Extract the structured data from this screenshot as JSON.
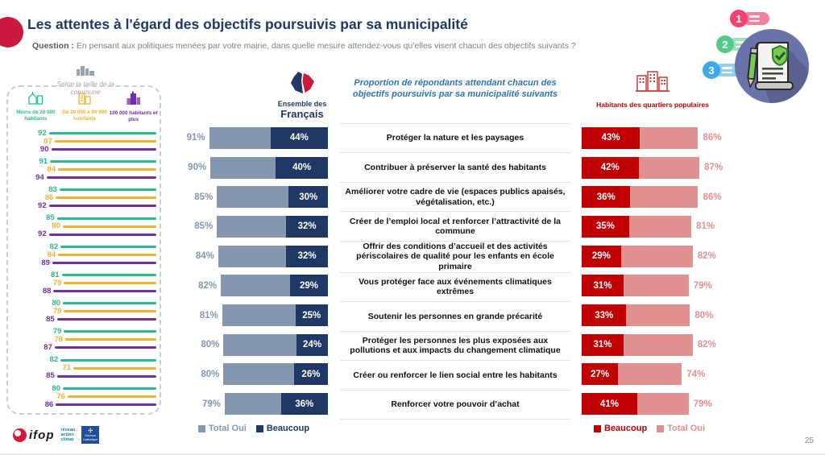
{
  "header": {
    "title": "Les attentes à l'égard des objectifs poursuivis par sa municipalité",
    "question_label": "Question :",
    "question_text": "En pensant aux politiques menées par votre mairie, dans quelle mesure attendez-vous qu’elles visent chacun des objectifs suivants ?",
    "page_number": "25"
  },
  "left_panel": {
    "title": "Selon la taille de la commune",
    "icon": "city-gray-icon",
    "groups": [
      {
        "label": "Moins de 20 000 habitants",
        "color": "#2EB98D",
        "icon": "village-icon"
      },
      {
        "label": "De 20 000 à 99 999 habitants",
        "color": "#F0B232",
        "icon": "town-buildings-icon"
      },
      {
        "label": "100 000 habitants et plus",
        "color": "#7030A0",
        "icon": "skyscraper-icon"
      }
    ]
  },
  "national": {
    "header_line1": "Ensemble des",
    "header_line2": "Français",
    "icon": "france-map-icon",
    "legend": [
      {
        "label": "Total Oui",
        "color": "#8496B0"
      },
      {
        "label": "Beaucoup",
        "color": "#1F3864"
      }
    ]
  },
  "center": {
    "header": "Proportion de répondants attendant chacun des objectifs poursuivis par sa municipalité suivants"
  },
  "popular": {
    "header": "Habitants des quartiers populaires",
    "icon": "red-buildings-icon",
    "legend": [
      {
        "label": "Beaucoup",
        "color": "#C00000"
      },
      {
        "label": "Total Oui",
        "color": "#E29191"
      }
    ]
  },
  "chart_data": {
    "type": "bar",
    "orientation": "horizontal",
    "unit": "%",
    "xlim": [
      0,
      100
    ],
    "title": "Les attentes à l'égard des objectifs poursuivis par sa municipalité",
    "categories": [
      "Protéger la nature et les paysages",
      "Contribuer à préserver la santé des habitants",
      "Améliorer votre cadre de vie (espaces publics apaisés, végétalisation, etc.)",
      "Créer de l’emploi local et renforcer l’attractivité de la commune",
      "Offrir des conditions d’accueil et des activités périscolaires de qualité pour les enfants en école primaire",
      "Vous protéger face aux événements climatiques extrêmes",
      "Soutenir les personnes en grande précarité",
      "Protéger les personnes les plus exposées aux pollutions et aux impacts du changement climatique",
      "Créer ou renforcer le lien social entre les habitants",
      "Renforcer votre pouvoir d’achat"
    ],
    "series": [
      {
        "key": "size_small",
        "name": "Moins de 20 000 habitants",
        "color": "#2EB98D",
        "values": [
          92,
          91,
          83,
          85,
          82,
          81,
          80,
          79,
          82,
          80
        ]
      },
      {
        "key": "size_mid",
        "name": "De 20 000 à 99 999 habitants",
        "color": "#F0B232",
        "values": [
          87,
          84,
          86,
          80,
          84,
          79,
          79,
          78,
          71,
          76
        ]
      },
      {
        "key": "size_large",
        "name": "100 000 habitants et plus",
        "color": "#7030A0",
        "values": [
          90,
          94,
          92,
          92,
          89,
          88,
          85,
          87,
          85,
          86
        ]
      },
      {
        "key": "national_total",
        "name": "Ensemble des Français – Total Oui",
        "color": "#8496B0",
        "values": [
          91,
          90,
          85,
          85,
          84,
          82,
          81,
          80,
          80,
          79
        ]
      },
      {
        "key": "national_beaucoup",
        "name": "Ensemble des Français – Beaucoup",
        "color": "#1F3864",
        "values": [
          44,
          40,
          30,
          32,
          32,
          29,
          25,
          24,
          26,
          36
        ]
      },
      {
        "key": "popular_beaucoup",
        "name": "Habitants des quartiers populaires – Beaucoup",
        "color": "#C00000",
        "values": [
          43,
          42,
          36,
          35,
          29,
          31,
          33,
          31,
          27,
          41
        ]
      },
      {
        "key": "popular_total",
        "name": "Habitants des quartiers populaires – Total Oui",
        "color": "#E29191",
        "values": [
          86,
          87,
          86,
          81,
          82,
          79,
          80,
          82,
          74,
          79
        ]
      }
    ]
  },
  "illustration": {
    "badges": [
      "1",
      "2",
      "3"
    ]
  },
  "footer": {
    "ifop_label": "ifop",
    "rac_lines": [
      "réseau",
      "action",
      "climat"
    ],
    "sc_label": "Secours Catholique"
  }
}
